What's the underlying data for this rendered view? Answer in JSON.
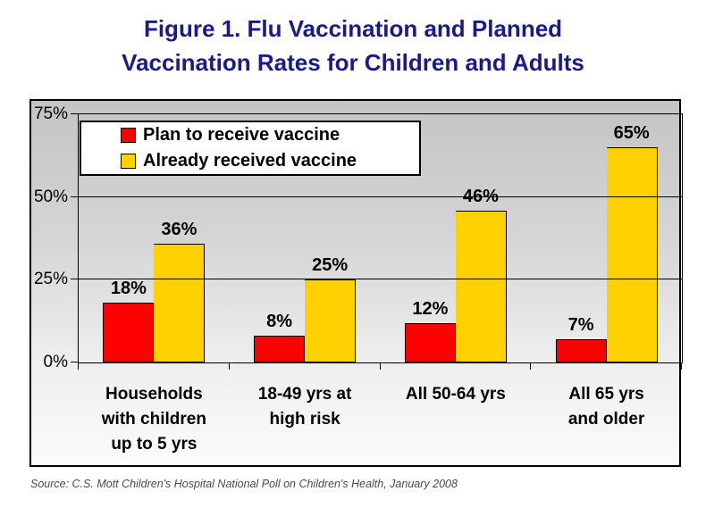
{
  "title": {
    "line1": "Figure 1. Flu Vaccination and Planned",
    "line2": "Vaccination Rates for Children and Adults"
  },
  "colors": {
    "title_text": "#1a1a8c",
    "plan_series": "#ff0000",
    "received_series": "#ffd100",
    "bar_border": "#000000",
    "chart_bg_top": "#c4c4c4",
    "chart_bg_bottom": "#fbfbfb"
  },
  "legend": {
    "items": [
      {
        "label": "Plan to receive vaccine",
        "color": "#ff0000"
      },
      {
        "label": "Already received vaccine",
        "color": "#ffd100"
      }
    ]
  },
  "x_axis": {
    "category_labels": [
      "Households\nwith children\nup to 5 yrs",
      "18-49 yrs at\nhigh risk",
      "All 50-64 yrs",
      "All 65 yrs\nand older"
    ]
  },
  "source": "Source: C.S. Mott Children's Hospital National Poll on Children's Health, January 2008",
  "chart_data": {
    "type": "bar",
    "title": "Figure 1. Flu Vaccination and Planned Vaccination Rates for Children and Adults",
    "categories": [
      "Households with children up to 5 yrs",
      "18-49 yrs at high risk",
      "All 50-64 yrs",
      "All 65 yrs and older"
    ],
    "series": [
      {
        "name": "Plan to receive vaccine",
        "color": "#ff0000",
        "values": [
          18,
          8,
          12,
          7
        ],
        "value_labels": [
          "18%",
          "8%",
          "12%",
          "7%"
        ]
      },
      {
        "name": "Already received vaccine",
        "color": "#ffd100",
        "values": [
          36,
          25,
          46,
          65
        ],
        "value_labels": [
          "36%",
          "25%",
          "46%",
          "65%"
        ]
      }
    ],
    "xlabel": "",
    "ylabel": "",
    "unit": "%",
    "ylim": [
      0,
      75
    ],
    "yticks": [
      {
        "value": 0,
        "label": "0%"
      },
      {
        "value": 25,
        "label": "25%"
      },
      {
        "value": 50,
        "label": "50%"
      },
      {
        "value": 75,
        "label": "75%"
      }
    ],
    "grid": true,
    "legend_position": "top-left",
    "data_labels": true
  }
}
